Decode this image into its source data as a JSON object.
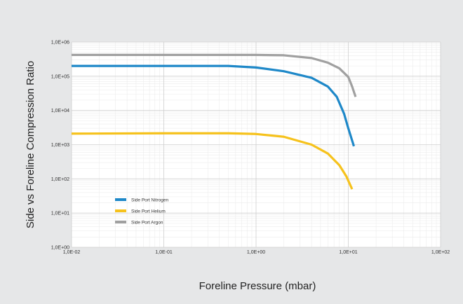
{
  "chart_data": {
    "type": "line",
    "xlabel": "Foreline Pressure (mbar)",
    "ylabel": "Side vs Foreline Compression Ratio",
    "x_scale": "log",
    "y_scale": "log",
    "xlim": [
      0.01,
      100
    ],
    "ylim": [
      1,
      1000000
    ],
    "x_ticks": [
      0.01,
      0.1,
      1,
      10,
      100
    ],
    "y_ticks": [
      1,
      10,
      100,
      1000,
      10000,
      100000,
      1000000
    ],
    "x_tick_labels": [
      "1,0E-02",
      "1,0E-01",
      "1,0E+00",
      "1,0E+01",
      "1,0E+02"
    ],
    "y_tick_labels": [
      "1,0E+00",
      "1,0E+01",
      "1,0E+02",
      "1,0E+03",
      "1,0E+04",
      "1,0E+05",
      "1,0E+06"
    ],
    "grid": true,
    "legend_position": "bottom-left",
    "series": [
      {
        "name": "Side Port Nitrogen",
        "color": "#1e88c8",
        "x": [
          0.01,
          0.1,
          0.5,
          1,
          2,
          4,
          6,
          7.5,
          9,
          10,
          11.5
        ],
        "y": [
          200000,
          200000,
          200000,
          180000,
          140000,
          90000,
          50000,
          25000,
          8000,
          3000,
          900
        ]
      },
      {
        "name": "Side Port Helium",
        "color": "#f6c21c",
        "x": [
          0.01,
          0.1,
          0.5,
          1,
          2,
          4,
          6,
          8,
          9.5,
          11
        ],
        "y": [
          2100,
          2150,
          2150,
          2050,
          1700,
          1000,
          550,
          250,
          120,
          50
        ]
      },
      {
        "name": "Side Port Argon",
        "color": "#a0a0a0",
        "x": [
          0.01,
          0.1,
          1,
          2,
          4,
          6,
          8,
          10,
          11,
          12
        ],
        "y": [
          420000,
          420000,
          420000,
          410000,
          340000,
          250000,
          170000,
          95000,
          50000,
          25000
        ]
      }
    ]
  }
}
